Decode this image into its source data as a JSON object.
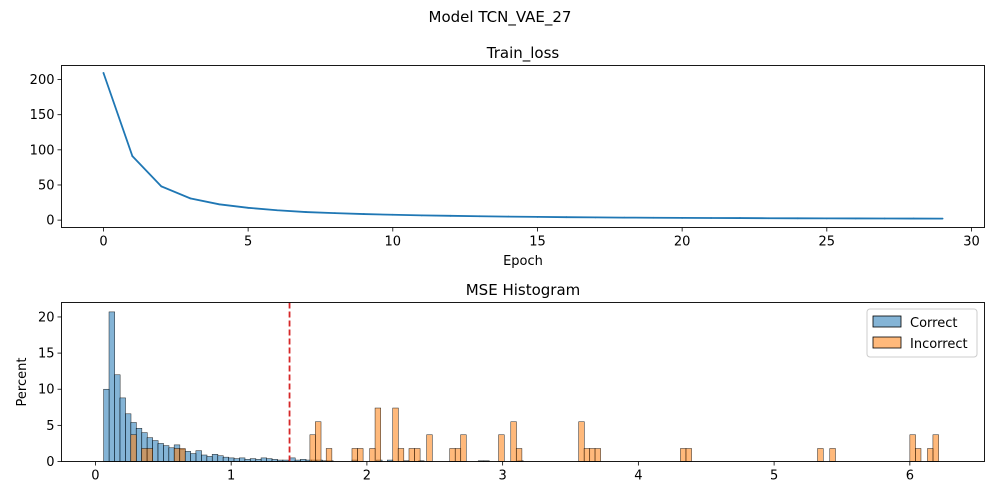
{
  "figure": {
    "suptitle": "Model TCN_VAE_27"
  },
  "chart_data": [
    {
      "type": "line",
      "title": "Train_loss",
      "xlabel": "Epoch",
      "ylabel": "",
      "xlim": [
        -1.45,
        30.45
      ],
      "ylim": [
        -10.5,
        220
      ],
      "xticks": [
        0,
        5,
        10,
        15,
        20,
        25,
        30
      ],
      "yticks": [
        0,
        50,
        100,
        150,
        200
      ],
      "grid": false,
      "color": "#1f77b4",
      "x": [
        0,
        1,
        2,
        3,
        4,
        5,
        6,
        7,
        8,
        9,
        10,
        11,
        12,
        13,
        14,
        15,
        16,
        17,
        18,
        19,
        20,
        21,
        22,
        23,
        24,
        25,
        26,
        27,
        28,
        29
      ],
      "y": [
        209.5,
        91,
        48,
        31,
        22.5,
        17.5,
        14,
        11.5,
        9.9,
        8.6,
        7.6,
        6.8,
        6.1,
        5.5,
        5.0,
        4.6,
        4.2,
        3.9,
        3.6,
        3.4,
        3.2,
        3.0,
        2.9,
        2.7,
        2.6,
        2.5,
        2.4,
        2.3,
        2.2,
        2.1
      ]
    },
    {
      "type": "histogram",
      "title": "MSE Histogram",
      "xlabel": "",
      "ylabel": "Percent",
      "xlim": [
        -0.25,
        6.55
      ],
      "ylim": [
        0,
        22
      ],
      "xticks": [
        0,
        1,
        2,
        3,
        4,
        5,
        6
      ],
      "yticks": [
        0,
        5,
        10,
        15,
        20
      ],
      "grid": false,
      "legend_position": "upper right",
      "bin_width": 0.042,
      "threshold": {
        "value": 1.43,
        "color": "#d62728",
        "style": "dashed"
      },
      "series": [
        {
          "name": "Correct",
          "color": "#1f77b4",
          "bins": [
            [
              0.06,
              10.0
            ],
            [
              0.1,
              20.7
            ],
            [
              0.14,
              12.0
            ],
            [
              0.18,
              8.8
            ],
            [
              0.22,
              6.6
            ],
            [
              0.26,
              5.4
            ],
            [
              0.3,
              4.6
            ],
            [
              0.34,
              4.0
            ],
            [
              0.38,
              3.3
            ],
            [
              0.42,
              2.9
            ],
            [
              0.46,
              2.5
            ],
            [
              0.5,
              2.2
            ],
            [
              0.54,
              1.9
            ],
            [
              0.58,
              2.3
            ],
            [
              0.62,
              1.7
            ],
            [
              0.66,
              1.4
            ],
            [
              0.7,
              1.1
            ],
            [
              0.74,
              1.5
            ],
            [
              0.78,
              0.9
            ],
            [
              0.82,
              0.7
            ],
            [
              0.86,
              1.0
            ],
            [
              0.9,
              0.8
            ],
            [
              0.94,
              0.6
            ],
            [
              0.98,
              0.5
            ],
            [
              1.02,
              0.4
            ],
            [
              1.06,
              0.5
            ],
            [
              1.1,
              0.3
            ],
            [
              1.14,
              0.4
            ],
            [
              1.18,
              0.3
            ],
            [
              1.22,
              0.5
            ],
            [
              1.26,
              0.4
            ],
            [
              1.3,
              0.3
            ],
            [
              1.34,
              0.2
            ],
            [
              1.38,
              0.2
            ],
            [
              1.43,
              0.5
            ],
            [
              1.47,
              0.2
            ],
            [
              1.51,
              0.3
            ],
            [
              1.55,
              0.2
            ],
            [
              1.59,
              0.2
            ],
            [
              1.63,
              0.2
            ],
            [
              1.67,
              0.1
            ],
            [
              1.71,
              0.1
            ],
            [
              1.89,
              0.2
            ],
            [
              2.07,
              0.2
            ],
            [
              2.15,
              0.2
            ],
            [
              2.27,
              0.1
            ],
            [
              2.38,
              0.1
            ],
            [
              2.82,
              0.1
            ],
            [
              2.86,
              0.1
            ],
            [
              3.11,
              0.1
            ]
          ]
        },
        {
          "name": "Incorrect",
          "color": "#ff7f0e",
          "bins": [
            [
              0.26,
              3.7
            ],
            [
              0.34,
              1.8
            ],
            [
              0.38,
              1.8
            ],
            [
              0.58,
              1.8
            ],
            [
              0.62,
              1.8
            ],
            [
              1.58,
              3.7
            ],
            [
              1.62,
              5.5
            ],
            [
              1.7,
              1.8
            ],
            [
              1.89,
              1.8
            ],
            [
              1.93,
              1.8
            ],
            [
              2.02,
              1.8
            ],
            [
              2.06,
              7.4
            ],
            [
              2.19,
              7.4
            ],
            [
              2.23,
              1.8
            ],
            [
              2.31,
              1.8
            ],
            [
              2.35,
              1.8
            ],
            [
              2.44,
              3.7
            ],
            [
              2.61,
              1.8
            ],
            [
              2.65,
              1.8
            ],
            [
              2.69,
              3.7
            ],
            [
              2.97,
              3.7
            ],
            [
              3.06,
              5.5
            ],
            [
              3.1,
              1.8
            ],
            [
              3.56,
              5.5
            ],
            [
              3.6,
              1.8
            ],
            [
              3.64,
              1.8
            ],
            [
              3.68,
              1.8
            ],
            [
              4.31,
              1.8
            ],
            [
              4.35,
              1.8
            ],
            [
              5.32,
              1.8
            ],
            [
              5.41,
              1.8
            ],
            [
              6.0,
              3.7
            ],
            [
              6.04,
              1.8
            ],
            [
              6.13,
              1.8
            ],
            [
              6.17,
              3.7
            ]
          ]
        }
      ]
    }
  ]
}
